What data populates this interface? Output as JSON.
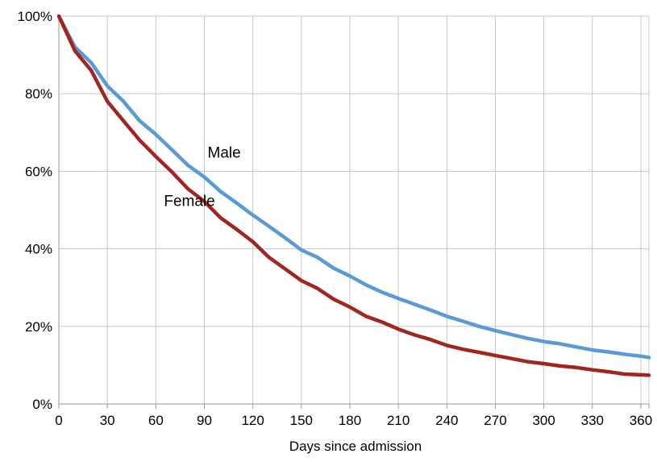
{
  "chart_data": {
    "type": "line",
    "title": "",
    "xlabel": "Days since admission",
    "ylabel": "",
    "xlim": [
      0,
      365
    ],
    "ylim": [
      0,
      100
    ],
    "x_ticks": [
      0,
      30,
      60,
      90,
      120,
      150,
      180,
      210,
      240,
      270,
      300,
      330,
      360
    ],
    "x_tick_labels": [
      "0",
      "30",
      "60",
      "90",
      "120",
      "150",
      "180",
      "210",
      "240",
      "270",
      "300",
      "330",
      "360"
    ],
    "y_ticks": [
      0,
      20,
      40,
      60,
      80,
      100
    ],
    "y_tick_labels": [
      "0%",
      "20%",
      "40%",
      "60%",
      "80%",
      "100%"
    ],
    "grid": true,
    "legend": "none",
    "x": [
      0,
      10,
      20,
      30,
      40,
      50,
      60,
      70,
      80,
      90,
      100,
      110,
      120,
      130,
      140,
      150,
      160,
      170,
      180,
      190,
      200,
      210,
      220,
      230,
      240,
      250,
      260,
      270,
      280,
      290,
      300,
      310,
      320,
      330,
      340,
      350,
      360,
      365
    ],
    "series": [
      {
        "name": "Male",
        "color": "#5b9bd5",
        "values": [
          100,
          92,
          88,
          82,
          78,
          73,
          69.5,
          65.5,
          61.5,
          58.5,
          54.8,
          51.8,
          48.7,
          45.8,
          42.8,
          39.7,
          37.8,
          35.0,
          33.0,
          30.7,
          28.8,
          27.2,
          25.7,
          24.2,
          22.6,
          21.3,
          20.0,
          18.9,
          17.9,
          16.9,
          16.1,
          15.5,
          14.7,
          13.9,
          13.4,
          12.8,
          12.3,
          12.0
        ]
      },
      {
        "name": "Female",
        "color": "#a0271f",
        "values": [
          100,
          91,
          86,
          78,
          73,
          68,
          63.8,
          59.8,
          55.4,
          52.2,
          48.0,
          45.0,
          41.8,
          37.8,
          34.8,
          31.8,
          29.8,
          27.0,
          25.0,
          22.6,
          21.1,
          19.3,
          17.8,
          16.6,
          15.1,
          14.1,
          13.3,
          12.5,
          11.7,
          10.9,
          10.4,
          9.8,
          9.4,
          8.8,
          8.3,
          7.7,
          7.5,
          7.4
        ]
      }
    ],
    "annotations": [
      {
        "text": "Male",
        "x": 92,
        "y": 63.5
      },
      {
        "text": "Female",
        "x": 65,
        "y": 51
      }
    ]
  }
}
